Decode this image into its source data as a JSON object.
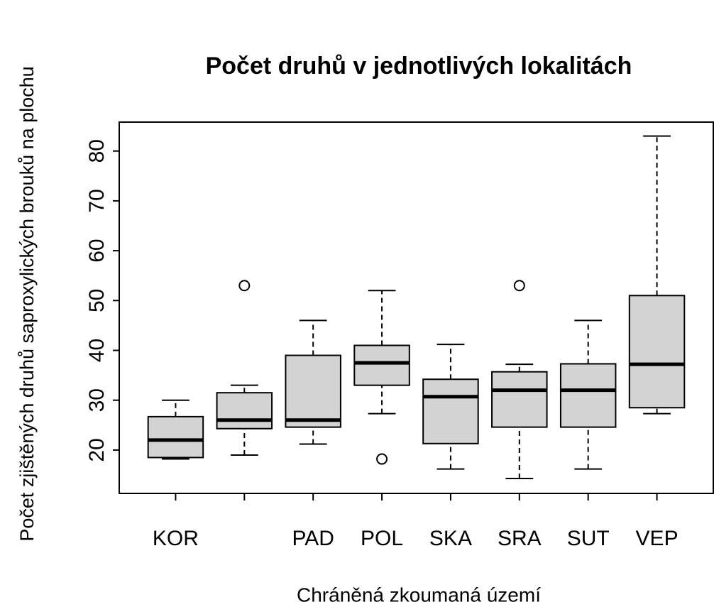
{
  "chart_data": {
    "type": "boxplot",
    "title": "Počet druhů v jednotlivých lokalitách",
    "x_label": "Chráněná zkoumaná území",
    "y_label": "Počet zjištěných druhů saproxylických brouků na plochu",
    "categories": [
      "KOR",
      null,
      "PAD",
      "POL",
      "SKA",
      "SRA",
      "SUT",
      "VEP"
    ],
    "boxes": [
      {
        "whisker_low": 18.2,
        "q1": 18.5,
        "median": 22,
        "q3": 26.7,
        "whisker_high": 30,
        "outliers": []
      },
      {
        "whisker_low": 19,
        "q1": 24.3,
        "median": 26,
        "q3": 31.5,
        "whisker_high": 33,
        "outliers": [
          53
        ]
      },
      {
        "whisker_low": 21.2,
        "q1": 24.6,
        "median": 26,
        "q3": 39,
        "whisker_high": 46,
        "outliers": []
      },
      {
        "whisker_low": 27.3,
        "q1": 33,
        "median": 37.5,
        "q3": 41,
        "whisker_high": 52,
        "outliers": [
          18.2
        ]
      },
      {
        "whisker_low": 16.2,
        "q1": 21.3,
        "median": 30.7,
        "q3": 34.2,
        "whisker_high": 41.2,
        "outliers": []
      },
      {
        "whisker_low": 14.3,
        "q1": 24.6,
        "median": 32,
        "q3": 35.7,
        "whisker_high": 37.2,
        "outliers": [
          53
        ]
      },
      {
        "whisker_low": 16.2,
        "q1": 24.6,
        "median": 32,
        "q3": 37.3,
        "whisker_high": 46,
        "outliers": []
      },
      {
        "whisker_low": 27.3,
        "q1": 28.5,
        "median": 37.2,
        "q3": 51,
        "whisker_high": 83,
        "outliers": []
      }
    ],
    "color": "#d3d3d3",
    "ylim": [
      11.3,
      85.8
    ],
    "yticks": [
      20,
      30,
      40,
      50,
      60,
      70,
      80
    ]
  }
}
